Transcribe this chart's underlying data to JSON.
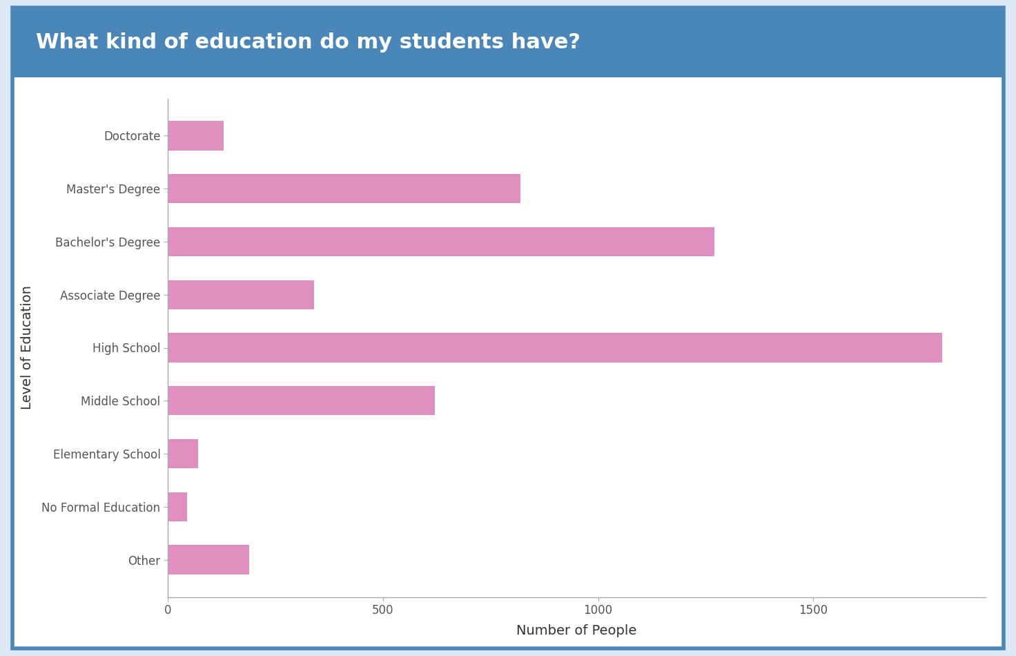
{
  "title": "What kind of education do my students have?",
  "title_bg_color": "#4a86b8",
  "title_text_color": "#ffffff",
  "xlabel": "Number of People",
  "ylabel": "Level of Education",
  "categories": [
    "Doctorate",
    "Master's Degree",
    "Bachelor's Degree",
    "Associate Degree",
    "High School",
    "Middle School",
    "Elementary School",
    "No Formal Education",
    "Other"
  ],
  "values": [
    130,
    820,
    1270,
    340,
    1800,
    620,
    70,
    45,
    190
  ],
  "bar_color": "#df8fbf",
  "bg_color": "#ffffff",
  "plot_bg_color": "#ffffff",
  "border_color": "#4a86b8",
  "outer_bg_color": "#dce8f3",
  "xlim": [
    0,
    1900
  ],
  "xticks": [
    0,
    500,
    1000,
    1500
  ],
  "title_fontsize": 22,
  "axis_label_fontsize": 14,
  "tick_fontsize": 12,
  "bar_height": 0.55
}
